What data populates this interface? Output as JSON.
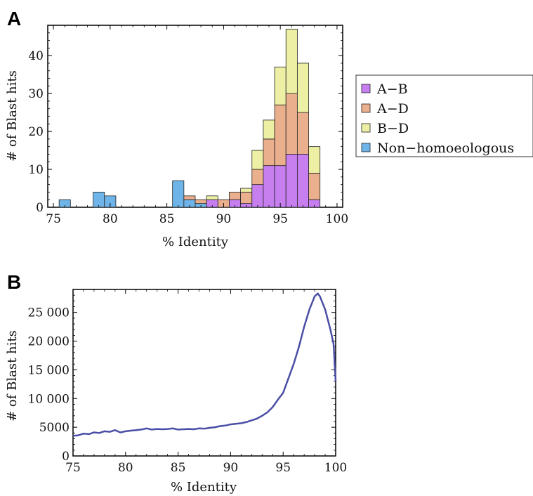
{
  "chart_data": [
    {
      "panel": "A",
      "type": "bar",
      "stacked": true,
      "xlabel": "% Identity",
      "ylabel": "# of Blast hits",
      "xlim": [
        74.5,
        100.5
      ],
      "ylim": [
        0,
        48
      ],
      "xticks": [
        75,
        80,
        85,
        90,
        95,
        100
      ],
      "yticks": [
        0,
        10,
        20,
        30,
        40
      ],
      "bin_width": 1,
      "bins": [
        76,
        77,
        78,
        79,
        80,
        81,
        82,
        83,
        84,
        85,
        86,
        87,
        88,
        89,
        90,
        91,
        92,
        93,
        94,
        95,
        96,
        97,
        98
      ],
      "series": [
        {
          "name": "Non−homoeologous",
          "color": "#6fb4e8",
          "values": [
            2,
            0,
            0,
            4,
            3,
            0,
            0,
            0,
            0,
            0,
            7,
            2,
            1,
            0,
            0,
            0,
            0,
            0,
            0,
            0,
            0,
            0,
            0
          ]
        },
        {
          "name": "A−B",
          "color": "#c77ff0",
          "values": [
            0,
            0,
            0,
            0,
            0,
            0,
            0,
            0,
            0,
            0,
            0,
            0,
            0,
            2,
            0,
            2,
            1,
            6,
            11,
            11,
            14,
            14,
            2
          ]
        },
        {
          "name": "A−D",
          "color": "#eaaf8c",
          "values": [
            0,
            0,
            0,
            0,
            0,
            0,
            0,
            0,
            0,
            0,
            0,
            1,
            1,
            0,
            2,
            2,
            3,
            4,
            7,
            16,
            16,
            11,
            7
          ]
        },
        {
          "name": "B−D",
          "color": "#edf0a4",
          "values": [
            0,
            0,
            0,
            0,
            0,
            0,
            0,
            0,
            0,
            0,
            0,
            0,
            0,
            1,
            0,
            0,
            1,
            5,
            5,
            10,
            17,
            13,
            7
          ]
        }
      ],
      "legend": {
        "placement": "right",
        "entries": [
          {
            "label": "A−B",
            "color": "#c77ff0"
          },
          {
            "label": "A−D",
            "color": "#eaaf8c"
          },
          {
            "label": "B−D",
            "color": "#edf0a4"
          },
          {
            "label": "Non−homoeologous",
            "color": "#6fb4e8"
          }
        ]
      }
    },
    {
      "panel": "B",
      "type": "line",
      "xlabel": "% Identity",
      "ylabel": "# of Blast hits",
      "xlim": [
        75,
        100
      ],
      "ylim": [
        0,
        29000
      ],
      "xticks": [
        75,
        80,
        85,
        90,
        95,
        100
      ],
      "yticks": [
        0,
        5000,
        10000,
        15000,
        20000,
        25000
      ],
      "ytick_labels": [
        "0",
        "5000",
        "10 000",
        "15 000",
        "20 000",
        "25 000"
      ],
      "color": "#4a4ea6",
      "x": [
        75,
        75.5,
        76,
        76.5,
        77,
        77.5,
        78,
        78.5,
        79,
        79.5,
        80,
        80.5,
        81,
        81.5,
        82,
        82.5,
        83,
        83.5,
        84,
        84.5,
        85,
        85.5,
        86,
        86.5,
        87,
        87.5,
        88,
        88.5,
        89,
        89.5,
        90,
        90.5,
        91,
        91.5,
        92,
        92.5,
        93,
        93.5,
        94,
        94.5,
        95,
        95.5,
        96,
        96.5,
        97,
        97.5,
        98,
        98.3,
        98.5,
        99,
        99.5,
        99.8,
        100
      ],
      "y": [
        3500,
        3600,
        3900,
        3800,
        4100,
        4000,
        4300,
        4200,
        4500,
        4100,
        4300,
        4400,
        4500,
        4600,
        4800,
        4600,
        4700,
        4650,
        4700,
        4800,
        4600,
        4650,
        4700,
        4650,
        4800,
        4750,
        4900,
        5000,
        5200,
        5300,
        5500,
        5600,
        5700,
        5900,
        6200,
        6500,
        7000,
        7600,
        8500,
        9800,
        11000,
        13500,
        16000,
        19000,
        22500,
        25500,
        27800,
        28300,
        27800,
        25500,
        22000,
        19500,
        13000
      ]
    }
  ]
}
